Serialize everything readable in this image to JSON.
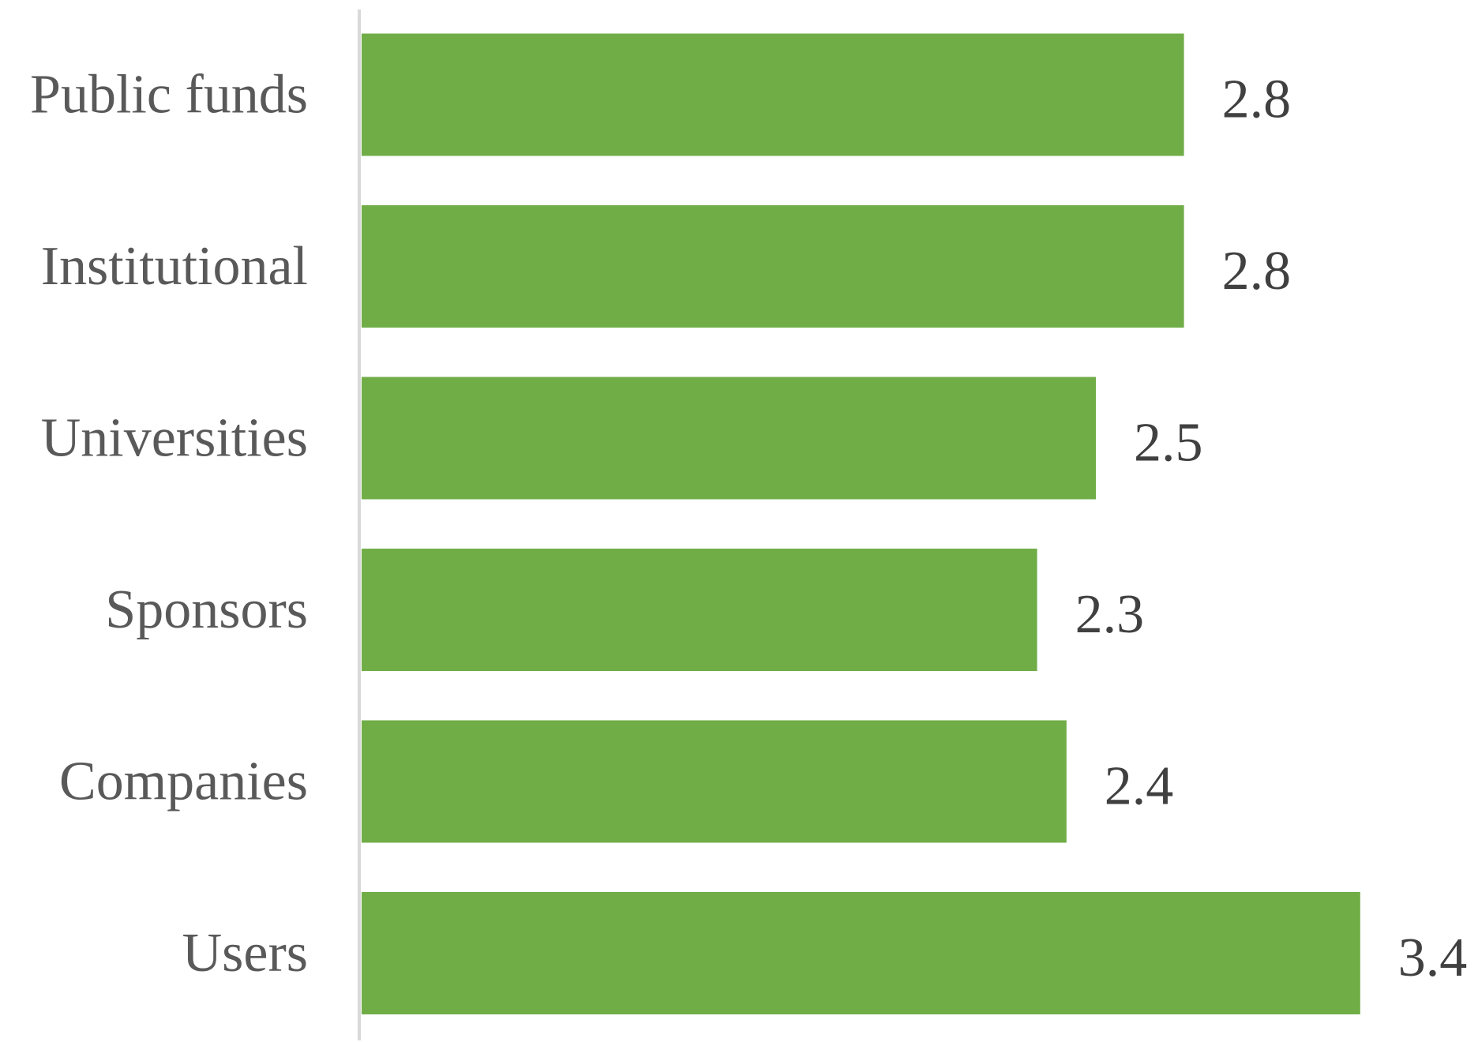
{
  "colors": {
    "bar": "#70AD47",
    "axis": "#D9D9D9",
    "category_text": "#595959",
    "value_text": "#404040",
    "background": "#FFFFFF"
  },
  "chart_data": {
    "type": "bar",
    "orientation": "horizontal",
    "title": "",
    "xlabel": "",
    "ylabel": "",
    "grid": false,
    "legend": "none",
    "xlim": [
      0,
      3.8
    ],
    "categories": [
      "Public funds",
      "Institutional",
      "Universities",
      "Sponsors",
      "Companies",
      "Users"
    ],
    "values": [
      2.8,
      2.8,
      2.5,
      2.3,
      2.4,
      3.4
    ],
    "data_labels": [
      "2.8",
      "2.8",
      "2.5",
      "2.3",
      "2.4",
      "3.4"
    ]
  }
}
